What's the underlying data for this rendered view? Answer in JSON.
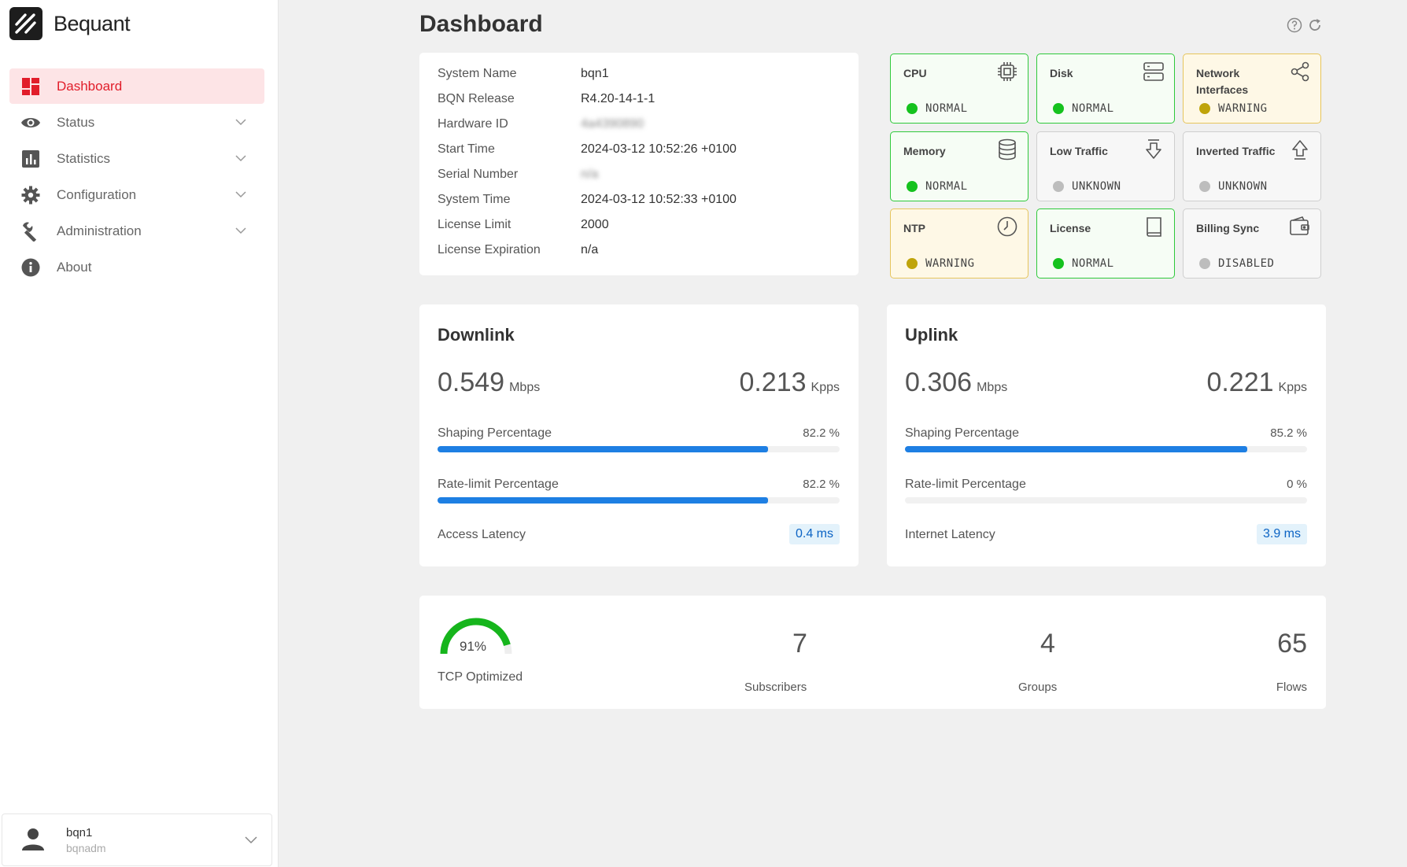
{
  "app": {
    "brand": "Bequant"
  },
  "sidebar": {
    "items": [
      {
        "label": "Dashboard",
        "icon": "dashboard-icon",
        "active": true
      },
      {
        "label": "Status",
        "icon": "eye-icon"
      },
      {
        "label": "Statistics",
        "icon": "bar-chart-icon"
      },
      {
        "label": "Configuration",
        "icon": "gear-icon"
      },
      {
        "label": "Administration",
        "icon": "wrench-icon"
      },
      {
        "label": "About",
        "icon": "info-icon"
      }
    ]
  },
  "user": {
    "name": "bqn1",
    "role": "bqnadm"
  },
  "page": {
    "title": "Dashboard"
  },
  "system_info": {
    "rows": [
      {
        "key": "System Name",
        "value": "bqn1"
      },
      {
        "key": "BQN Release",
        "value": "R4.20-14-1-1"
      },
      {
        "key": "Hardware ID",
        "value": "4a4390890"
      },
      {
        "key": "Start Time",
        "value": "2024-03-12 10:52:26 +0100"
      },
      {
        "key": "Serial Number",
        "value": "n/a"
      },
      {
        "key": "System Time",
        "value": "2024-03-12 10:52:33 +0100"
      },
      {
        "key": "License Limit",
        "value": "2000"
      },
      {
        "key": "License Expiration",
        "value": "n/a"
      }
    ]
  },
  "status_tiles": [
    {
      "name": "CPU",
      "status": "NORMAL",
      "level": "normal",
      "icon": "cpu-icon"
    },
    {
      "name": "Disk",
      "status": "NORMAL",
      "level": "normal",
      "icon": "server-icon"
    },
    {
      "name": "Network Interfaces",
      "status": "WARNING",
      "level": "warning",
      "icon": "share-icon"
    },
    {
      "name": "Memory",
      "status": "NORMAL",
      "level": "normal",
      "icon": "database-icon"
    },
    {
      "name": "Low Traffic",
      "status": "UNKNOWN",
      "level": "unknown",
      "icon": "arrow-down-icon"
    },
    {
      "name": "Inverted Traffic",
      "status": "UNKNOWN",
      "level": "unknown",
      "icon": "arrow-up-icon"
    },
    {
      "name": "NTP",
      "status": "WARNING",
      "level": "warning",
      "icon": "clock-icon"
    },
    {
      "name": "License",
      "status": "NORMAL",
      "level": "normal",
      "icon": "book-icon"
    },
    {
      "name": "Billing Sync",
      "status": "DISABLED",
      "level": "unknown",
      "icon": "wallet-icon"
    }
  ],
  "downlink": {
    "title": "Downlink",
    "throughput": "0.549",
    "throughput_unit": "Mbps",
    "packets": "0.213",
    "packets_unit": "Kpps",
    "shaping_label": "Shaping Percentage",
    "shaping_value": "82.2 %",
    "shaping_pct": 82.2,
    "ratelimit_label": "Rate-limit Percentage",
    "ratelimit_value": "82.2 %",
    "ratelimit_pct": 82.2,
    "latency_label": "Access Latency",
    "latency_value": "0.4 ms"
  },
  "uplink": {
    "title": "Uplink",
    "throughput": "0.306",
    "throughput_unit": "Mbps",
    "packets": "0.221",
    "packets_unit": "Kpps",
    "shaping_label": "Shaping Percentage",
    "shaping_value": "85.2 %",
    "shaping_pct": 85.2,
    "ratelimit_label": "Rate-limit Percentage",
    "ratelimit_value": "0 %",
    "ratelimit_pct": 0,
    "latency_label": "Internet Latency",
    "latency_value": "3.9 ms"
  },
  "summary": {
    "tcp_value": "91%",
    "tcp_pct": 91,
    "tcp_label": "TCP Optimized",
    "subscribers": "7",
    "subscribers_label": "Subscribers",
    "groups": "4",
    "groups_label": "Groups",
    "flows": "65",
    "flows_label": "Flows"
  },
  "colors": {
    "accent": "#e11d2a",
    "normal": "#15c21e",
    "warning": "#bfa40a",
    "bar": "#1e7fe3",
    "gauge": "#16b51c"
  }
}
